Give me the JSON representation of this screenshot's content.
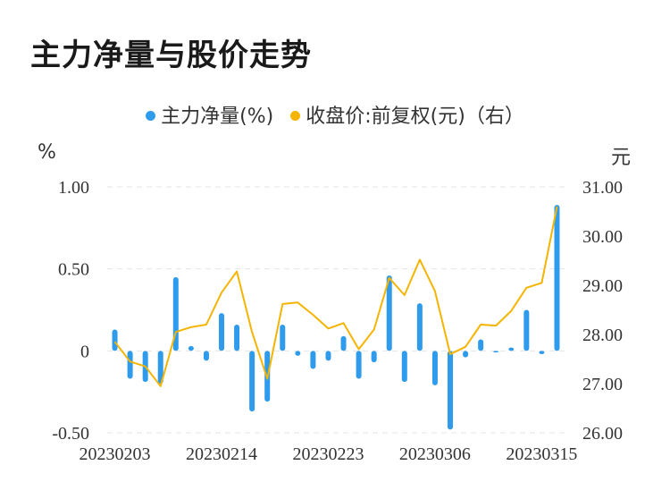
{
  "title": "主力净量与股价走势",
  "legend": {
    "series1": "主力净量(%)",
    "series2": "收盘价:前复权(元)（右）"
  },
  "units": {
    "left": "%",
    "right": "元"
  },
  "colors": {
    "bar": "#2f9bec",
    "line": "#f4b400",
    "grid": "#e6e6e6"
  },
  "chart_data": {
    "type": "bar+line",
    "x_tick_labels": [
      "20230203",
      "20230214",
      "20230223",
      "20230306",
      "20230315"
    ],
    "y_left": {
      "ticks": [
        "1.00",
        "0.50",
        "0",
        "-0.50"
      ],
      "range": [
        -0.5,
        1.0
      ]
    },
    "y_right": {
      "ticks": [
        "31.00",
        "30.00",
        "29.00",
        "28.00",
        "27.00",
        "26.00"
      ],
      "range": [
        26.0,
        31.0
      ]
    },
    "series": [
      {
        "name": "主力净量(%)",
        "type": "bar",
        "axis": "left",
        "values": [
          0.13,
          -0.17,
          -0.19,
          -0.2,
          0.45,
          0.03,
          -0.06,
          0.23,
          0.16,
          -0.37,
          -0.31,
          0.16,
          -0.03,
          -0.11,
          -0.06,
          0.09,
          -0.17,
          -0.07,
          0.46,
          -0.19,
          0.29,
          -0.21,
          -0.48,
          -0.04,
          0.07,
          -0.01,
          0.02,
          0.25,
          -0.02,
          0.89
        ]
      },
      {
        "name": "收盘价:前复权(元)（右）",
        "type": "line",
        "axis": "right",
        "values": [
          27.85,
          27.45,
          27.35,
          26.95,
          28.05,
          28.15,
          28.2,
          28.85,
          29.28,
          28.05,
          27.1,
          28.62,
          28.65,
          28.4,
          28.12,
          28.23,
          27.7,
          28.1,
          29.15,
          28.8,
          29.52,
          28.88,
          27.6,
          27.75,
          28.2,
          28.18,
          28.48,
          28.95,
          29.05,
          30.6
        ]
      }
    ]
  }
}
